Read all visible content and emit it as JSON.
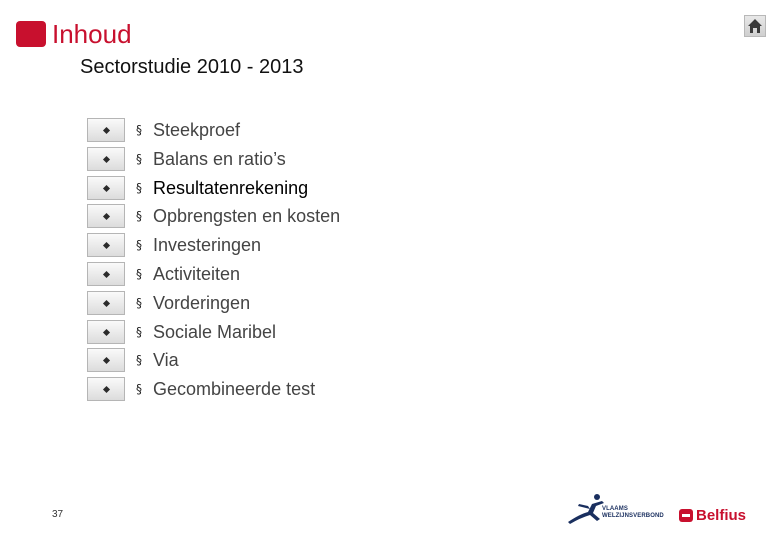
{
  "header": {
    "title": "Inhoud",
    "subtitle": "Sectorstudie 2010 - 2013",
    "home_icon": "home-icon"
  },
  "toc": {
    "bullet": "§",
    "items": [
      {
        "label": "Steekproef"
      },
      {
        "label": "Balans en ratio’s"
      },
      {
        "label": "Resultatenrekening"
      },
      {
        "label": "Opbrengsten en kosten"
      },
      {
        "label": "Investeringen"
      },
      {
        "label": "Activiteiten"
      },
      {
        "label": "Vorderingen"
      },
      {
        "label": "Sociale Maribel"
      },
      {
        "label": "Via"
      },
      {
        "label": "Gecombineerde test"
      }
    ]
  },
  "footer": {
    "page_number": "37",
    "logo_vwv_line1": "VLAAMS",
    "logo_vwv_line2": "WELZIJNSVERBOND",
    "logo_belfius": "Belfius"
  },
  "colors": {
    "accent": "#c8102e",
    "text": "#444444",
    "logo_blue": "#1a2f5f"
  }
}
